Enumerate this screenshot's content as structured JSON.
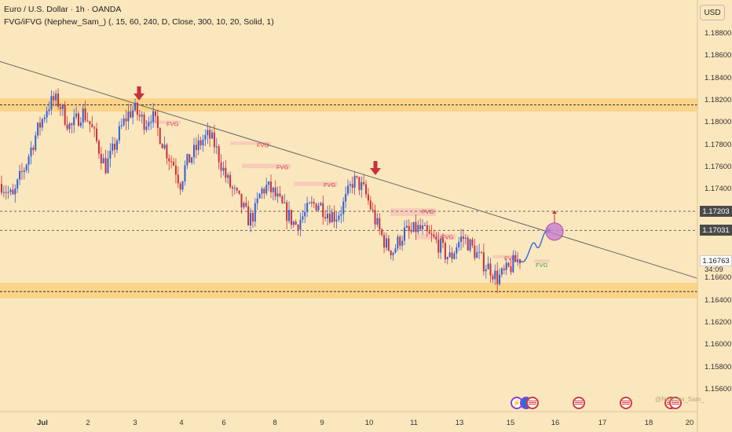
{
  "header": {
    "title": "Euro / U.S. Dollar · 1h · OANDA",
    "indicator": "FVG/iFVG (Nephew_Sam_) (, 15, 60, 240, D, Close, 300, 10, 20, Solid, 1)"
  },
  "currency": "USD",
  "y_ticks": [
    "1.18800",
    "1.18600",
    "1.18400",
    "1.18200",
    "1.18000",
    "1.17800",
    "1.17600",
    "1.17400",
    "1.16600",
    "1.16400",
    "1.16200",
    "1.16000",
    "1.15800",
    "1.15600"
  ],
  "price_tags": {
    "level_1": "1.17203",
    "level_2": "1.17031",
    "current": "1.16763",
    "countdown": "34:09"
  },
  "x_ticks": [
    {
      "label": "Jul",
      "bold": true
    },
    {
      "label": "2",
      "bold": false
    },
    {
      "label": "3",
      "bold": false
    },
    {
      "label": "4",
      "bold": false
    },
    {
      "label": "6",
      "bold": false
    },
    {
      "label": "8",
      "bold": false
    },
    {
      "label": "9",
      "bold": false
    },
    {
      "label": "10",
      "bold": false
    },
    {
      "label": "11",
      "bold": false
    },
    {
      "label": "13",
      "bold": false
    },
    {
      "label": "15",
      "bold": false
    },
    {
      "label": "16",
      "bold": false
    },
    {
      "label": "17",
      "bold": false
    },
    {
      "label": "18",
      "bold": false
    },
    {
      "label": "20",
      "bold": false
    }
  ],
  "fvg_label": "FVG",
  "watermark": "@Nephew_Sam_",
  "colors": {
    "background": "#fbe7bd",
    "up": "#2f5fd8",
    "down": "#c9303b",
    "zone": "#fbd48a",
    "fvg_box": "#f6c7b8",
    "fvg_text": "#d6404a",
    "fvg_bull_text": "#2ea84a",
    "projection": "#3a6fe0",
    "target_circle": "#c77fd0",
    "arrow_marker": "#c9303b"
  },
  "chart_data": {
    "type": "candlestick",
    "symbol": "EURUSD",
    "timeframe": "1h",
    "title": "Euro / U.S. Dollar · 1h · OANDA",
    "y_range": [
      1.155,
      1.19
    ],
    "x_labels": [
      "Jul",
      "2",
      "3",
      "4",
      "6",
      "8",
      "9",
      "10",
      "11",
      "13",
      "15",
      "16",
      "17",
      "18",
      "20"
    ],
    "price_path": [
      1.1745,
      1.1738,
      1.1732,
      1.1748,
      1.176,
      1.1775,
      1.179,
      1.1802,
      1.1815,
      1.182,
      1.1818,
      1.1805,
      1.1795,
      1.1802,
      1.181,
      1.1803,
      1.179,
      1.1775,
      1.176,
      1.177,
      1.1785,
      1.1798,
      1.1808,
      1.1812,
      1.1805,
      1.18,
      1.1808,
      1.1795,
      1.1782,
      1.177,
      1.1762,
      1.1745,
      1.1762,
      1.177,
      1.1778,
      1.1785,
      1.1788,
      1.178,
      1.1765,
      1.175,
      1.174,
      1.1732,
      1.1722,
      1.1712,
      1.172,
      1.1738,
      1.1742,
      1.1738,
      1.173,
      1.1722,
      1.1715,
      1.1708,
      1.1714,
      1.172,
      1.1726,
      1.1728,
      1.1722,
      1.1718,
      1.1716,
      1.1722,
      1.1734,
      1.1748,
      1.1745,
      1.1738,
      1.1725,
      1.171,
      1.1698,
      1.1688,
      1.1685,
      1.1694,
      1.1702,
      1.17,
      1.1705,
      1.1703,
      1.1698,
      1.1695,
      1.169,
      1.1682,
      1.1678,
      1.169,
      1.1697,
      1.1692,
      1.1685,
      1.1678,
      1.1672,
      1.1668,
      1.166,
      1.1663,
      1.1668,
      1.1674,
      1.1678
    ],
    "resistance_zone": [
      1.181,
      1.1822
    ],
    "resistance_level": 1.1816,
    "support_zone": [
      1.1642,
      1.1656
    ],
    "support_level": 1.1648,
    "horizontal_levels": [
      1.17203,
      1.17031
    ],
    "current_price": 1.16763,
    "trendline": {
      "start": 1.1855,
      "end": 1.166
    },
    "fvg_zones": [
      {
        "label": "FVG",
        "price": [
          1.1799,
          1.1802
        ]
      },
      {
        "label": "FVG",
        "price": [
          1.178,
          1.1783
        ]
      },
      {
        "label": "FVG",
        "price": [
          1.1759,
          1.1763
        ]
      },
      {
        "label": "FVG",
        "price": [
          1.1743,
          1.1747
        ]
      },
      {
        "label": "FVG",
        "price": [
          1.1716,
          1.1723
        ]
      },
      {
        "label": "FVG",
        "price": [
          1.1695,
          1.17
        ]
      },
      {
        "label": "FVG",
        "price": [
          1.1678,
          1.1681
        ]
      },
      {
        "label": "FVG",
        "price": [
          1.1674,
          1.1677
        ],
        "bullish": true
      }
    ],
    "grid": false
  }
}
